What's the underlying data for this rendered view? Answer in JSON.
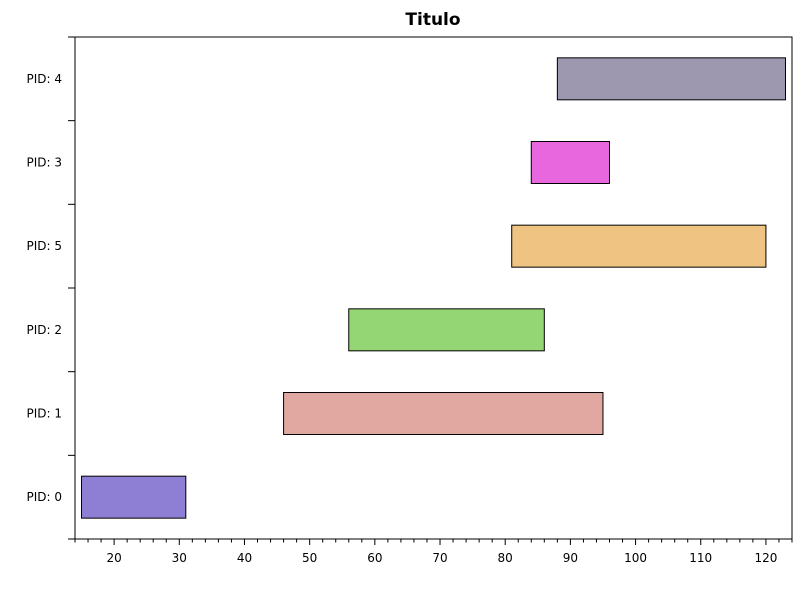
{
  "chart_data": {
    "type": "gantt",
    "title": "Titulo",
    "xlabel": "",
    "ylabel": "",
    "xlim": [
      14,
      124
    ],
    "x_ticks_major": [
      20,
      30,
      40,
      50,
      60,
      70,
      80,
      90,
      100,
      110,
      120
    ],
    "x_tick_minor_step": 2,
    "grid": false,
    "rows": [
      {
        "label": "PID: 0",
        "start": 15,
        "end": 31,
        "color": "#8f7fd4"
      },
      {
        "label": "PID: 1",
        "start": 46,
        "end": 95,
        "color": "#e0a8a0"
      },
      {
        "label": "PID: 2",
        "start": 56,
        "end": 86,
        "color": "#95d674"
      },
      {
        "label": "PID: 5",
        "start": 81,
        "end": 120,
        "color": "#efc382"
      },
      {
        "label": "PID: 3",
        "start": 84,
        "end": 96,
        "color": "#e867df"
      },
      {
        "label": "PID: 4",
        "start": 88,
        "end": 123,
        "color": "#9d97b0"
      }
    ]
  }
}
